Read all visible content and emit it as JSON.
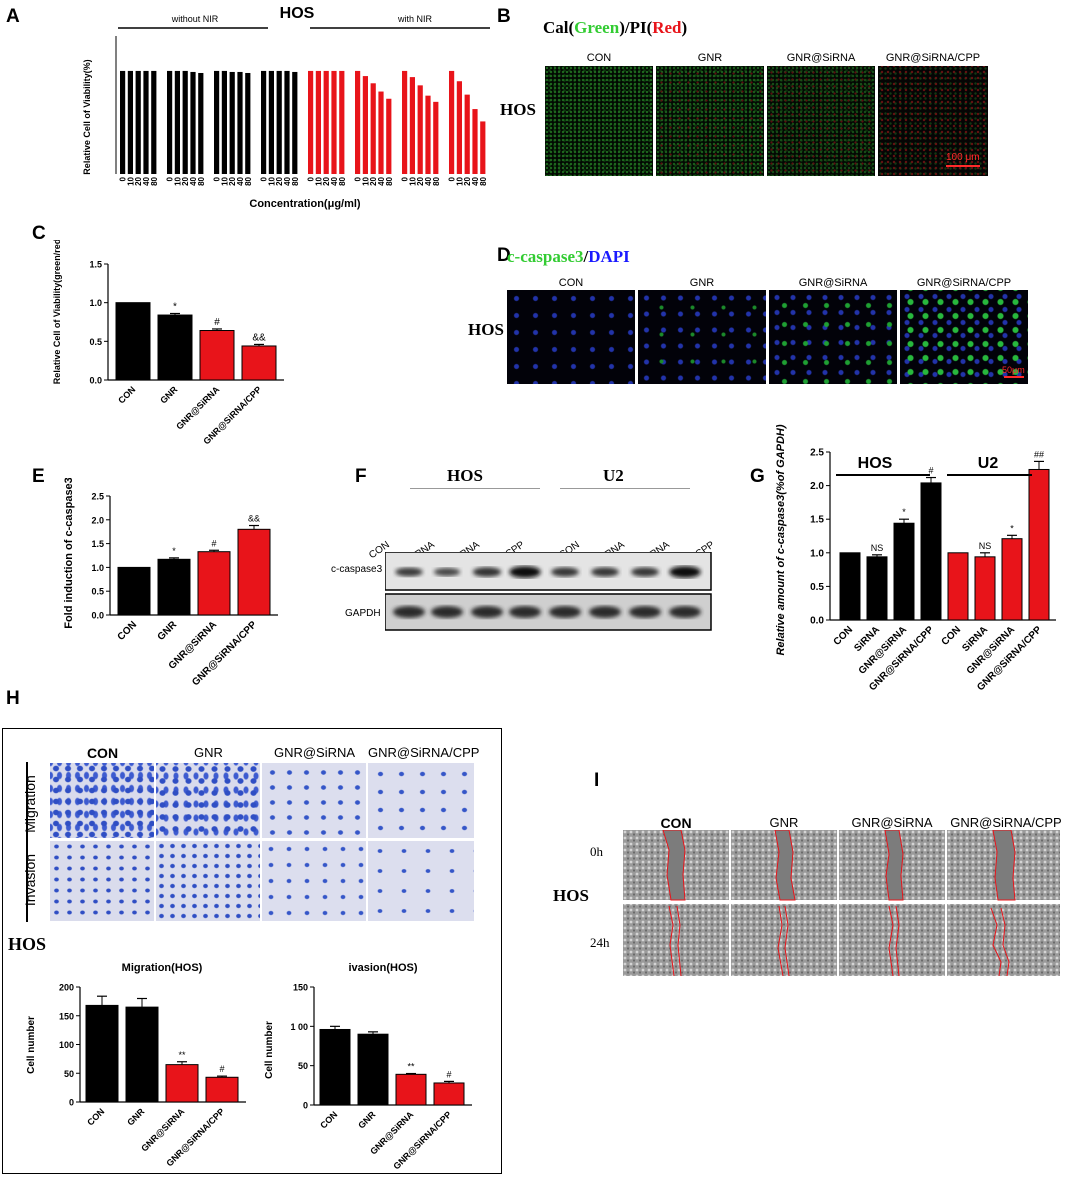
{
  "panels": {
    "A": "A",
    "B": "B",
    "C": "C",
    "D": "D",
    "E": "E",
    "F": "F",
    "G": "G",
    "H": "H",
    "I": "I"
  },
  "colors": {
    "black": "#000000",
    "red": "#e8141a",
    "green": "#33cc33",
    "blue": "#1a1aff"
  },
  "chart_data": [
    {
      "id": "A",
      "type": "bar",
      "title": "HOS",
      "group_labels": [
        "without NIR",
        "with NIR"
      ],
      "xlabel": "Concentration(μg/ml)",
      "ylabel": "Relative Cell of Viability(%)",
      "tick_labels": [
        "0",
        "10",
        "20",
        "40",
        "80"
      ],
      "ylim": [
        0,
        130
      ],
      "groups": [
        {
          "color": "#000000",
          "values": [
            100,
            100,
            100,
            100,
            100
          ]
        },
        {
          "color": "#000000",
          "values": [
            100,
            100,
            100,
            99,
            98
          ]
        },
        {
          "color": "#000000",
          "values": [
            100,
            100,
            99,
            99,
            98
          ]
        },
        {
          "color": "#000000",
          "values": [
            100,
            100,
            100,
            100,
            99
          ]
        },
        {
          "color": "#e8141a",
          "values": [
            100,
            100,
            100,
            100,
            100
          ]
        },
        {
          "color": "#e8141a",
          "values": [
            100,
            95,
            88,
            80,
            73
          ]
        },
        {
          "color": "#e8141a",
          "values": [
            100,
            94,
            86,
            76,
            70
          ]
        },
        {
          "color": "#e8141a",
          "values": [
            100,
            90,
            77,
            63,
            51
          ]
        }
      ]
    },
    {
      "id": "C",
      "type": "bar",
      "ylabel": "Relative Cell of Viability(green/red)",
      "categories": [
        "CON",
        "GNR",
        "GNR@SiRNA",
        "GNR@SiRNA/CPP"
      ],
      "values": [
        1.0,
        0.84,
        0.64,
        0.44
      ],
      "errors": [
        0,
        0.02,
        0.02,
        0.02
      ],
      "colors": [
        "#000000",
        "#000000",
        "#e8141a",
        "#e8141a"
      ],
      "marks": [
        "",
        "*",
        "#",
        "&&"
      ],
      "ylim": [
        0,
        1.5
      ],
      "yticks": [
        "0.0",
        "0.5",
        "1.0",
        "1.5"
      ]
    },
    {
      "id": "E",
      "type": "bar",
      "ylabel": "Fold induction of c-caspase3",
      "categories": [
        "CON",
        "GNR",
        "GNR@SiRNA",
        "GNR@SiRNA/CPP"
      ],
      "values": [
        1.0,
        1.17,
        1.33,
        1.8
      ],
      "errors": [
        0,
        0.03,
        0.03,
        0.08
      ],
      "colors": [
        "#000000",
        "#000000",
        "#e8141a",
        "#e8141a"
      ],
      "marks": [
        "",
        "*",
        "#",
        "&&"
      ],
      "ylim": [
        0,
        2.5
      ],
      "yticks": [
        "0.0",
        "0.5",
        "1.0",
        "1.5",
        "2.0",
        "2.5"
      ]
    },
    {
      "id": "G",
      "type": "bar",
      "ylabel": "Relative amount of c-caspase3(%of GAPDH)",
      "group_labels": [
        "HOS",
        "U2"
      ],
      "categories": [
        "CON",
        "SiRNA",
        "GNR@SiRNA",
        "GNR@SiRNA/CPP",
        "CON",
        "SiRNA",
        "GNR@SiRNA",
        "GNR@SiRNA/CPP"
      ],
      "values": [
        1.0,
        0.94,
        1.44,
        2.04,
        1.0,
        0.94,
        1.21,
        2.24
      ],
      "errors": [
        0,
        0.03,
        0.06,
        0.08,
        0,
        0.06,
        0.05,
        0.12
      ],
      "colors": [
        "#000000",
        "#000000",
        "#000000",
        "#000000",
        "#e8141a",
        "#e8141a",
        "#e8141a",
        "#e8141a"
      ],
      "marks": [
        "",
        "NS",
        "*",
        "#",
        "",
        "NS",
        "*",
        "##"
      ],
      "ylim": [
        0,
        2.5
      ],
      "yticks": [
        "0.0",
        "0.5",
        "1.0",
        "1.5",
        "2.0",
        "2.5"
      ]
    },
    {
      "id": "H1",
      "type": "bar",
      "title": "Migration(HOS)",
      "ylabel": "Cell number",
      "categories": [
        "CON",
        "GNR",
        "GNR@SiRNA",
        "GNR@SiRNA/CPP"
      ],
      "values": [
        168,
        165,
        65,
        43
      ],
      "errors": [
        16,
        15,
        5,
        2
      ],
      "colors": [
        "#000000",
        "#000000",
        "#e8141a",
        "#e8141a"
      ],
      "marks": [
        "",
        "",
        "**",
        "#"
      ],
      "ylim": [
        0,
        200
      ],
      "yticks": [
        "0",
        "50",
        "100",
        "150",
        "200"
      ]
    },
    {
      "id": "H2",
      "type": "bar",
      "title": "ivasion(HOS)",
      "ylabel": "Cell number",
      "categories": [
        "CON",
        "GNR",
        "GNR@SiRNA",
        "GNR@SiRNA/CPP"
      ],
      "values": [
        96,
        90,
        39,
        28
      ],
      "errors": [
        4,
        3,
        1,
        2
      ],
      "colors": [
        "#000000",
        "#000000",
        "#e8141a",
        "#e8141a"
      ],
      "marks": [
        "",
        "",
        "**",
        "#"
      ],
      "ylim": [
        0,
        150
      ],
      "yticks": [
        "0",
        "50",
        "1 00",
        "150"
      ]
    }
  ],
  "B": {
    "title_parts": [
      "Cal(",
      "Green",
      ")/PI(",
      "Red",
      ")"
    ],
    "row_label": "HOS",
    "columns": [
      "CON",
      "GNR",
      "GNR@SiRNA",
      "GNR@SiRNA/CPP"
    ],
    "scale": "100 μm"
  },
  "D": {
    "title_parts": [
      "c-caspase3",
      "/",
      "DAPI"
    ],
    "row_label": "HOS",
    "columns": [
      "CON",
      "GNR",
      "GNR@SiRNA",
      "GNR@SiRNA/CPP"
    ],
    "scale": "50μm"
  },
  "F": {
    "cell_lines": [
      "HOS",
      "U2"
    ],
    "lanes": [
      "CON",
      "SiRNA",
      "GNR@SiRNA",
      "GNR@SiRNA/CPP",
      "CON",
      "SiRNA",
      "GNR@SiRNA",
      "GNR@SiRNA/CPP"
    ],
    "bands": [
      "c-caspase3",
      "GAPDH"
    ],
    "intensity": [
      0.55,
      0.45,
      0.65,
      0.95,
      0.6,
      0.6,
      0.6,
      0.95
    ]
  },
  "H": {
    "columns": [
      "CON",
      "GNR",
      "GNR@SiRNA",
      "GNR@SiRNA/CPP"
    ],
    "rows": [
      "Migration",
      "Invasion"
    ],
    "label": "HOS"
  },
  "I": {
    "columns": [
      "CON",
      "GNR",
      "GNR@SiRNA",
      "GNR@SiRNA/CPP"
    ],
    "rows": [
      "0h",
      "24h"
    ],
    "label": "HOS"
  }
}
